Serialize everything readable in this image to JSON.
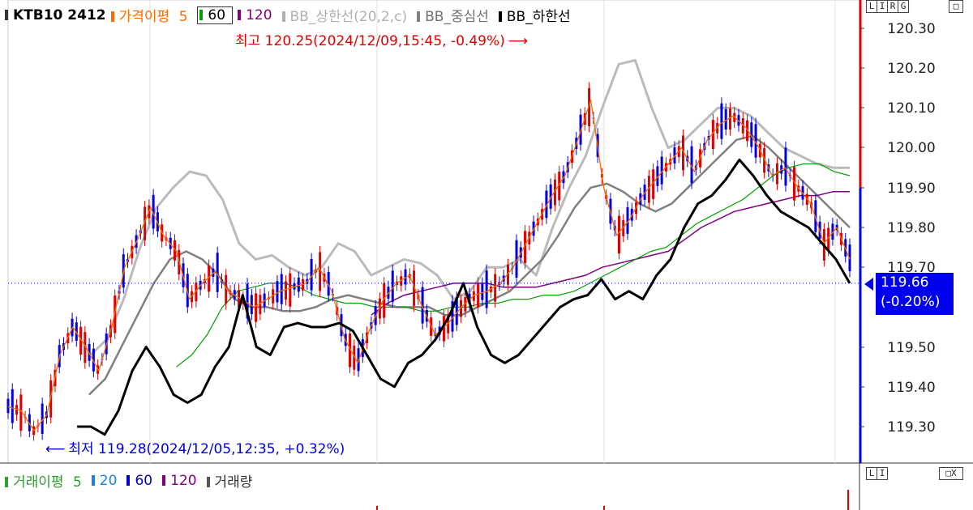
{
  "legend": {
    "symbol": "KTB10  2412",
    "ma_label": "가격이평",
    "ma_periods": [
      "5",
      "60",
      "120"
    ],
    "bb_upper": "BB_상한선(20,2,c)",
    "bb_mid": "BB_중심선",
    "bb_lower": "BB_하한선"
  },
  "volume_legend": {
    "label": "거래이평",
    "periods": [
      "5",
      "20",
      "60",
      "120"
    ],
    "volume": "거래량"
  },
  "annotations": {
    "high": "최고  120.25(2024/12/09,15:45,  -0.49%)",
    "high_arrow": "⟶",
    "low_arrow": "⟵",
    "low": "최저  119.28(2024/12/05,12:35,  +0.32%)"
  },
  "price_tag": {
    "price": "119.66",
    "change": "(-0.20%)"
  },
  "controls": {
    "top": [
      "L",
      "I",
      "R",
      "G"
    ],
    "top_right": "□",
    "vol_left": [
      "L",
      "I"
    ],
    "vol_right": "□X"
  },
  "colors": {
    "candle_up": "#e00000",
    "candle_down": "#0000e0",
    "ma5": "#ff6a00",
    "ma60": "#00a000",
    "ma120": "#800080",
    "bb_upper": "#bbbbbb",
    "bb_mid": "#808080",
    "bb_lower": "#000000",
    "vol_ma5": "#2e9e2e",
    "vol_ma20": "#2080e0",
    "vol_ma60": "#0000cc",
    "vol_ma120": "#800080",
    "accent": "#0000ee"
  },
  "chart_data": {
    "type": "line",
    "y_ticks": [
      "120.30",
      "120.20",
      "120.10",
      "120.00",
      "119.90",
      "119.80",
      "119.70",
      "119.50",
      "119.40",
      "119.30"
    ],
    "ylim": [
      119.2,
      120.35
    ],
    "high": 120.25,
    "low": 119.28,
    "last": 119.66,
    "series": [
      {
        "name": "가격이평 5",
        "values": [
          119.35,
          119.34,
          119.29,
          119.33,
          119.48,
          119.55,
          119.5,
          119.44,
          119.55,
          119.7,
          119.77,
          119.85,
          119.78,
          119.74,
          119.62,
          119.66,
          119.69,
          119.64,
          119.62,
          119.6,
          119.62,
          119.64,
          119.65,
          119.66,
          119.7,
          119.64,
          119.52,
          119.46,
          119.55,
          119.62,
          119.66,
          119.68,
          119.6,
          119.53,
          119.56,
          119.6,
          119.63,
          119.64,
          119.66,
          119.7,
          119.76,
          119.82,
          119.88,
          119.93,
          120.02,
          120.12,
          119.9,
          119.78,
          119.82,
          119.88,
          119.92,
          119.96,
          120.0,
          119.94,
          120.02,
          120.06,
          120.08,
          120.05,
          120.0,
          119.93,
          119.95,
          119.9,
          119.86,
          119.76,
          119.8,
          119.72
        ]
      },
      {
        "name": "60",
        "values": [
          null,
          null,
          null,
          null,
          null,
          null,
          null,
          null,
          null,
          null,
          null,
          119.45,
          119.48,
          119.53,
          119.6,
          119.64,
          119.65,
          119.66,
          119.66,
          119.65,
          119.63,
          119.62,
          119.61,
          119.61,
          119.6,
          119.6,
          119.6,
          119.59,
          119.59,
          119.6,
          119.6,
          119.61,
          119.61,
          119.62,
          119.62,
          119.63,
          119.63,
          119.64,
          119.66,
          119.68,
          119.7,
          119.72,
          119.74,
          119.75,
          119.78,
          119.81,
          119.83,
          119.85,
          119.87,
          119.9,
          119.93,
          119.95,
          119.96,
          119.96,
          119.94,
          119.93
        ]
      },
      {
        "name": "120",
        "values": [
          null,
          null,
          null,
          null,
          null,
          null,
          null,
          null,
          null,
          null,
          null,
          null,
          null,
          null,
          null,
          null,
          null,
          null,
          null,
          null,
          null,
          null,
          119.58,
          119.61,
          119.63,
          119.64,
          119.65,
          119.66,
          119.66,
          119.66,
          119.65,
          119.65,
          119.65,
          119.66,
          119.67,
          119.68,
          119.7,
          119.71,
          119.72,
          119.73,
          119.74,
          119.77,
          119.8,
          119.82,
          119.84,
          119.85,
          119.86,
          119.87,
          119.88,
          119.88,
          119.89,
          119.89
        ]
      },
      {
        "name": "BB_상한선(20,2,c)",
        "values": [
          null,
          null,
          null,
          null,
          null,
          119.48,
          119.52,
          119.62,
          119.75,
          119.85,
          119.9,
          119.94,
          119.93,
          119.87,
          119.76,
          119.72,
          119.73,
          119.7,
          119.68,
          119.7,
          119.76,
          119.74,
          119.68,
          119.7,
          119.72,
          119.71,
          119.68,
          119.62,
          119.64,
          119.7,
          119.7,
          119.72,
          119.68,
          119.8,
          119.9,
          119.98,
          120.1,
          120.21,
          120.22,
          120.1,
          120.0,
          120.02,
          120.06,
          120.1,
          120.1,
          120.08,
          120.04,
          120.0,
          119.98,
          119.96,
          119.95,
          119.95
        ]
      },
      {
        "name": "BB_중심선",
        "values": [
          null,
          null,
          null,
          null,
          null,
          119.38,
          119.42,
          119.5,
          119.58,
          119.66,
          119.72,
          119.74,
          119.72,
          119.68,
          119.62,
          119.6,
          119.6,
          119.59,
          119.59,
          119.6,
          119.62,
          119.63,
          119.62,
          119.61,
          119.6,
          119.6,
          119.6,
          119.58,
          119.58,
          119.6,
          119.62,
          119.64,
          119.68,
          119.72,
          119.78,
          119.85,
          119.9,
          119.91,
          119.89,
          119.86,
          119.84,
          119.86,
          119.9,
          119.94,
          119.98,
          120.02,
          120.03,
          120.0,
          119.96,
          119.92,
          119.88,
          119.84,
          119.8
        ]
      },
      {
        "name": "BB_하한선",
        "values": [
          null,
          null,
          null,
          null,
          null,
          119.3,
          119.3,
          119.28,
          119.34,
          119.44,
          119.5,
          119.45,
          119.38,
          119.36,
          119.38,
          119.45,
          119.5,
          119.63,
          119.5,
          119.48,
          119.55,
          119.56,
          119.55,
          119.55,
          119.56,
          119.54,
          119.48,
          119.42,
          119.4,
          119.46,
          119.48,
          119.52,
          119.58,
          119.66,
          119.55,
          119.48,
          119.46,
          119.48,
          119.52,
          119.56,
          119.6,
          119.62,
          119.63,
          119.67,
          119.62,
          119.64,
          119.62,
          119.68,
          119.72,
          119.8,
          119.86,
          119.88,
          119.92,
          119.97,
          119.93,
          119.88,
          119.84,
          119.82,
          119.8,
          119.76,
          119.72,
          119.66
        ]
      }
    ]
  }
}
